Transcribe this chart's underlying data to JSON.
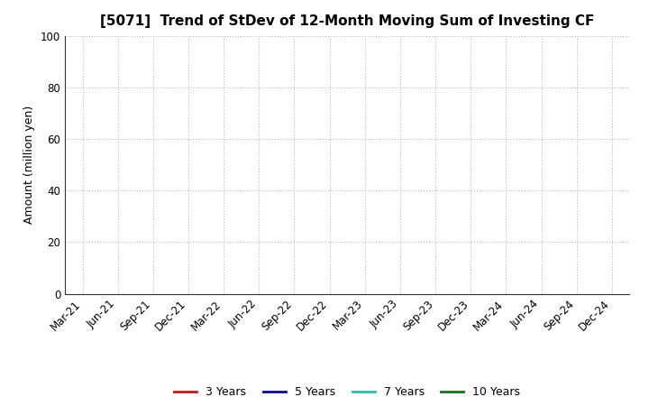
{
  "title": "[5071]  Trend of StDev of 12-Month Moving Sum of Investing CF",
  "ylabel": "Amount (million yen)",
  "ylim": [
    0,
    100
  ],
  "yticks": [
    0,
    20,
    40,
    60,
    80,
    100
  ],
  "x_labels": [
    "Mar-21",
    "Jun-21",
    "Sep-21",
    "Dec-21",
    "Mar-22",
    "Jun-22",
    "Sep-22",
    "Dec-22",
    "Mar-23",
    "Jun-23",
    "Sep-23",
    "Dec-23",
    "Mar-24",
    "Jun-24",
    "Sep-24",
    "Dec-24"
  ],
  "legend_entries": [
    {
      "label": "3 Years",
      "color": "#FF0000"
    },
    {
      "label": "5 Years",
      "color": "#0000CD"
    },
    {
      "label": "7 Years",
      "color": "#00CCCC"
    },
    {
      "label": "10 Years",
      "color": "#008000"
    }
  ],
  "background_color": "#FFFFFF",
  "grid_color": "#BBBBBB",
  "title_fontsize": 11,
  "ylabel_fontsize": 9,
  "tick_fontsize": 8.5,
  "legend_fontsize": 9
}
